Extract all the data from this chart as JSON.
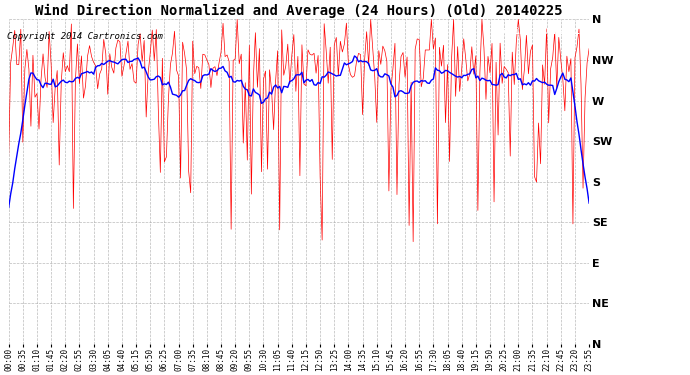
{
  "title": "Wind Direction Normalized and Average (24 Hours) (Old) 20140225",
  "copyright": "Copyright 2014 Cartronics.com",
  "ytick_labels": [
    "N",
    "NW",
    "W",
    "SW",
    "S",
    "SE",
    "E",
    "NE",
    "N"
  ],
  "ytick_values": [
    1.0,
    0.875,
    0.75,
    0.625,
    0.5,
    0.375,
    0.25,
    0.125,
    0.0
  ],
  "bg_color": "#ffffff",
  "plot_bg_color": "#ffffff",
  "grid_color": "#aaaaaa",
  "red_color": "#ff0000",
  "blue_color": "#0000ff",
  "legend_bg_median": "#000080",
  "legend_bg_direction": "#cc0000",
  "median_text_color": "#ffffff",
  "direction_text_color": "#ffffff",
  "title_fontsize": 10,
  "copyright_fontsize": 6.5,
  "ylabel_fontsize": 8,
  "tick_fontsize": 5.5,
  "seed": 42,
  "n_points": 288,
  "nw_base": 0.875,
  "nw_spread": 0.06,
  "tick_step": 7
}
